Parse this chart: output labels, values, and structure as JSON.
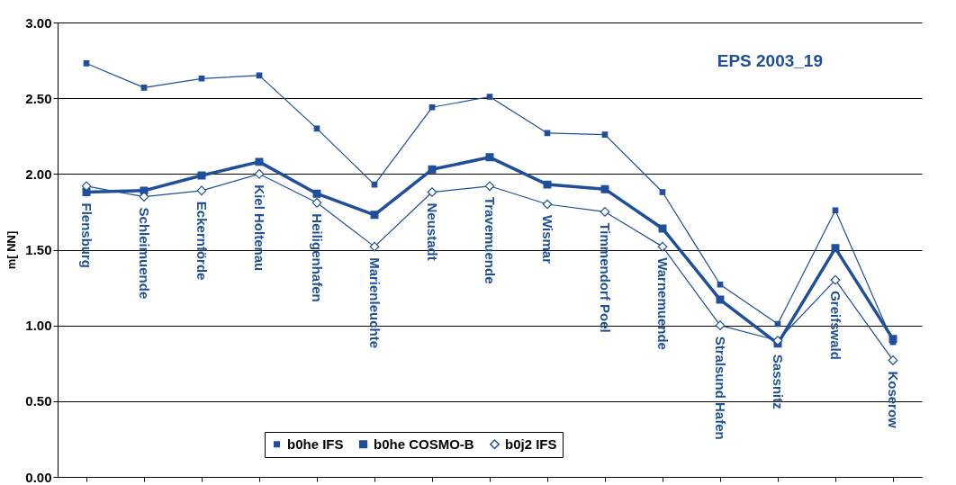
{
  "chart_data": {
    "type": "line",
    "title": "EPS 2003_19",
    "ylabel": "m[ NN]",
    "categories": [
      "Flensburg",
      "Schleimuende",
      "Eckernförde",
      "Kiel Holtenau",
      "Heiligenhafen",
      "Marienleuchte",
      "Neustadt",
      "Travemuende",
      "Wismar",
      "Timmendorf Poel",
      "Warnemuende",
      "Stralsund Hafen",
      "Sassnitz",
      "Greifswald",
      "Koserow"
    ],
    "series": [
      {
        "name": "b0he IFS",
        "color": "#1f4e9a",
        "marker": "square",
        "values": [
          2.73,
          2.57,
          2.63,
          2.65,
          2.3,
          1.93,
          2.44,
          2.51,
          2.27,
          2.26,
          1.88,
          1.27,
          1.01,
          1.76,
          0.89
        ]
      },
      {
        "name": "b0he COSMO-B",
        "color": "#1f4e9a",
        "marker": "square",
        "values": [
          1.88,
          1.89,
          1.99,
          2.08,
          1.87,
          1.73,
          2.03,
          2.11,
          1.93,
          1.9,
          1.64,
          1.17,
          0.88,
          1.51,
          0.91
        ]
      },
      {
        "name": "b0j2 IFS",
        "color": "#1f4e9a",
        "marker": "diamond",
        "values": [
          1.92,
          1.85,
          1.89,
          2.0,
          1.81,
          1.52,
          1.88,
          1.92,
          1.8,
          1.75,
          1.52,
          1.0,
          0.9,
          1.3,
          0.77
        ]
      }
    ],
    "ylim": [
      0,
      3
    ],
    "yticks": [
      {
        "value": 0,
        "label": "0.00"
      },
      {
        "value": 0.5,
        "label": "0.50"
      },
      {
        "value": 1,
        "label": "1.00"
      },
      {
        "value": 1.5,
        "label": "1.50"
      },
      {
        "value": 2,
        "label": "2.00"
      },
      {
        "value": 2.5,
        "label": "2.50"
      },
      {
        "value": 3,
        "label": "3.00"
      }
    ],
    "grid": "y",
    "legend": "bottom",
    "line_style": "solid"
  }
}
